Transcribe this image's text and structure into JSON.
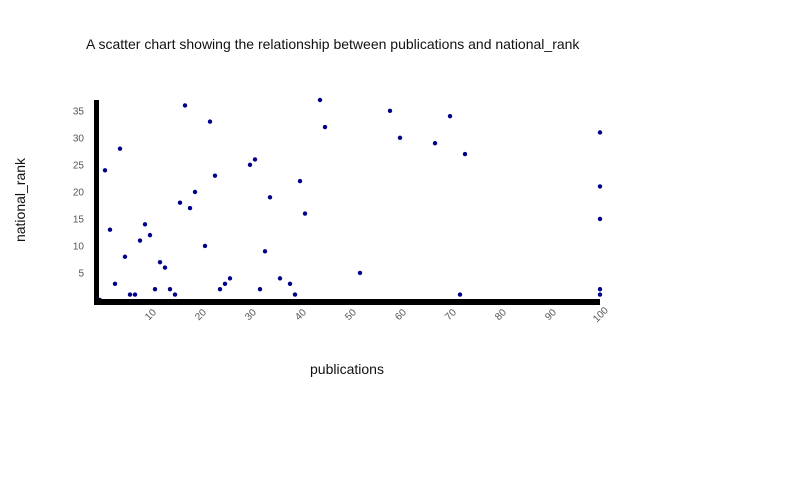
{
  "chart_data": {
    "type": "scatter",
    "title": "A scatter chart showing the relationship between publications and national_rank",
    "xlabel": "publications",
    "ylabel": "national_rank",
    "xlim": [
      0,
      100
    ],
    "ylim": [
      0,
      37
    ],
    "x_ticks": [
      "10",
      "20",
      "30",
      "40",
      "50",
      "60",
      "70",
      "80",
      "90",
      "100"
    ],
    "y_ticks": [
      "5",
      "10",
      "15",
      "20",
      "25",
      "30",
      "35"
    ],
    "grid": false,
    "point_color": "#00008b",
    "axis_color": "#000000",
    "series": [
      {
        "points": [
          [
            0,
            0
          ],
          [
            1,
            24
          ],
          [
            2,
            13
          ],
          [
            3,
            3
          ],
          [
            4,
            28
          ],
          [
            5,
            8
          ],
          [
            6,
            1
          ],
          [
            7,
            1
          ],
          [
            8,
            11
          ],
          [
            9,
            14
          ],
          [
            10,
            12
          ],
          [
            11,
            2
          ],
          [
            12,
            7
          ],
          [
            13,
            6
          ],
          [
            14,
            2
          ],
          [
            15,
            1
          ],
          [
            16,
            18
          ],
          [
            17,
            36
          ],
          [
            18,
            17
          ],
          [
            19,
            20
          ],
          [
            21,
            10
          ],
          [
            22,
            33
          ],
          [
            23,
            23
          ],
          [
            24,
            2
          ],
          [
            25,
            3
          ],
          [
            26,
            4
          ],
          [
            30,
            25
          ],
          [
            31,
            26
          ],
          [
            32,
            2
          ],
          [
            33,
            9
          ],
          [
            34,
            19
          ],
          [
            36,
            4
          ],
          [
            38,
            3
          ],
          [
            39,
            1
          ],
          [
            40,
            22
          ],
          [
            41,
            16
          ],
          [
            44,
            37
          ],
          [
            45,
            32
          ],
          [
            52,
            5
          ],
          [
            58,
            35
          ],
          [
            60,
            30
          ],
          [
            67,
            29
          ],
          [
            70,
            34
          ],
          [
            72,
            1
          ],
          [
            73,
            27
          ],
          [
            100,
            31
          ],
          [
            100,
            21
          ],
          [
            100,
            15
          ],
          [
            100,
            2
          ],
          [
            100,
            1
          ]
        ]
      }
    ]
  }
}
